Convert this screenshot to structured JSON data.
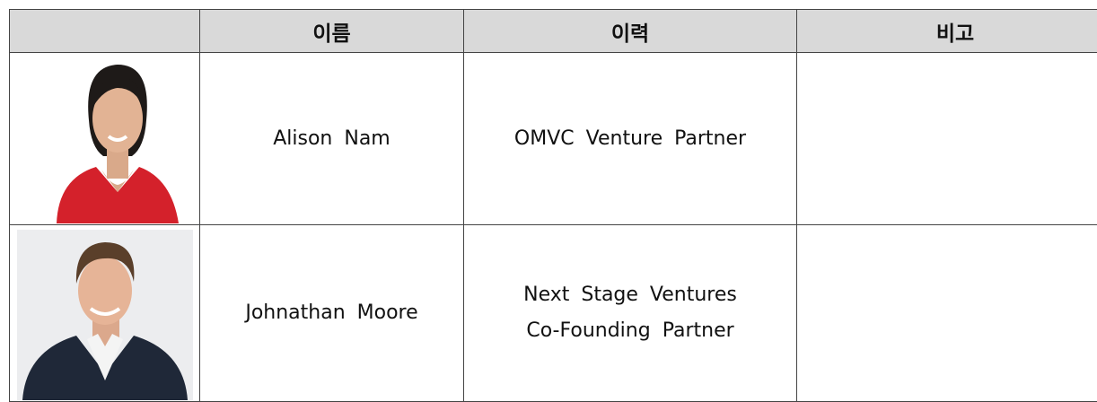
{
  "header": {
    "name": "이름",
    "career": "이력",
    "note": "비고"
  },
  "rows": [
    {
      "name": "Alison Nam",
      "career": [
        "OMVC Venture Partner"
      ]
    },
    {
      "name": "Johnathan Moore",
      "career": [
        "Next Stage Ventures",
        "Co-Founding Partner"
      ]
    }
  ]
}
